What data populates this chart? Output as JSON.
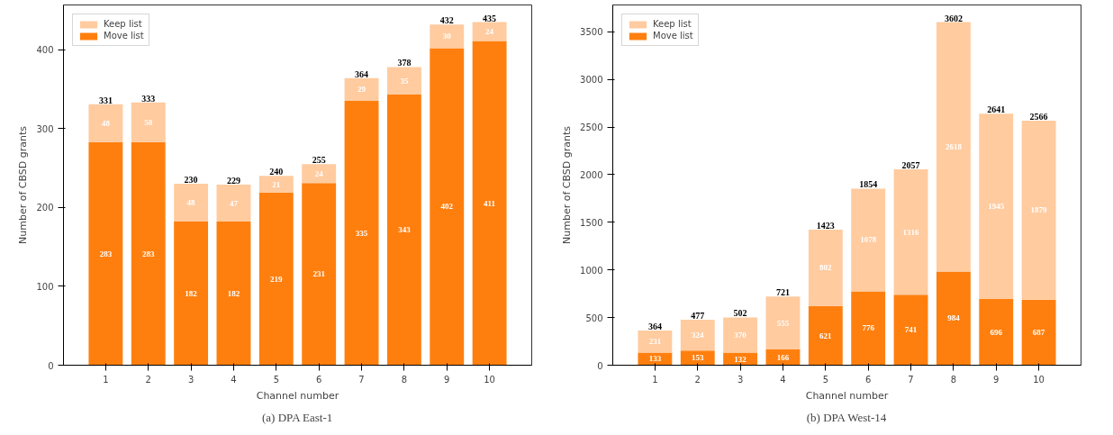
{
  "chart_data": [
    {
      "type": "bar",
      "title": "(a) DPA East-1",
      "xlabel": "Channel number",
      "ylabel": "Number of CBSD grants",
      "categories": [
        "1",
        "2",
        "3",
        "4",
        "5",
        "6",
        "7",
        "8",
        "9",
        "10"
      ],
      "stacked": true,
      "ylim": [
        0,
        456.75
      ],
      "yticks": [
        0,
        100,
        200,
        300,
        400
      ],
      "grid": false,
      "legend": "top left",
      "data_labels": true,
      "series": [
        {
          "name": "Move list",
          "color": "#ff7f0e",
          "values": [
            283,
            283,
            182,
            182,
            219,
            231,
            335,
            343,
            402,
            411
          ]
        },
        {
          "name": "Keep list",
          "color": "#ffcb9f",
          "values": [
            48,
            50,
            48,
            47,
            21,
            24,
            29,
            35,
            30,
            24
          ]
        }
      ],
      "totals": [
        "331",
        "333",
        "230",
        "229",
        "240",
        "255",
        "364",
        "378",
        "432",
        "435"
      ]
    },
    {
      "type": "bar",
      "title": "(b) DPA West-14",
      "xlabel": "Channel number",
      "ylabel": "Number of CBSD grants",
      "categories": [
        "1",
        "2",
        "3",
        "4",
        "5",
        "6",
        "7",
        "8",
        "9",
        "10"
      ],
      "stacked": true,
      "ylim": [
        0,
        3782
      ],
      "yticks": [
        0,
        500,
        1000,
        1500,
        2000,
        2500,
        3000,
        3500
      ],
      "grid": false,
      "legend": "top left",
      "data_labels": true,
      "series": [
        {
          "name": "Move list",
          "color": "#ff7f0e",
          "values": [
            133,
            153,
            132,
            166,
            621,
            776,
            741,
            984,
            696,
            687
          ]
        },
        {
          "name": "Keep list",
          "color": "#ffcb9f",
          "values": [
            231,
            324,
            370,
            555,
            802,
            1078,
            1316,
            2618,
            1945,
            1879
          ]
        }
      ],
      "totals": [
        "364",
        "477",
        "502",
        "721",
        "1423",
        "1854",
        "2057",
        "3602",
        "2641",
        "2566"
      ]
    }
  ]
}
